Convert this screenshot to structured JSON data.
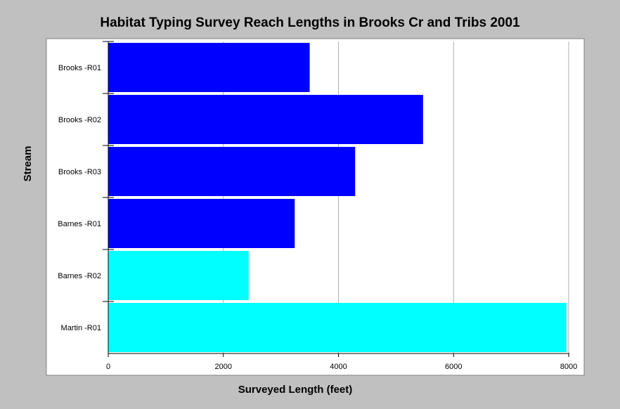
{
  "chart_data": {
    "type": "bar",
    "orientation": "horizontal",
    "title": "Habitat Typing Survey Reach Lengths in Brooks Cr and Tribs 2001",
    "xlabel": "Surveyed Length (feet)",
    "ylabel": "Stream",
    "categories": [
      "Brooks -R01",
      "Brooks -R02",
      "Brooks -R03",
      "Barnes -R01",
      "Barnes -R02",
      "Martin -R01"
    ],
    "values": [
      3500,
      5470,
      4290,
      3240,
      2440,
      7960
    ],
    "bar_colors": [
      "#0000ff",
      "#0000ff",
      "#0000ff",
      "#0000ff",
      "#00ffff",
      "#00ffff"
    ],
    "xlim": [
      0,
      8000
    ],
    "xticks": [
      0,
      2000,
      4000,
      6000,
      8000
    ],
    "xtick_labels": [
      "0",
      "2000",
      "4000",
      "6000",
      "8000"
    ],
    "grid": true,
    "plot_background": "#ffffff",
    "background": "#c0c0c0"
  }
}
